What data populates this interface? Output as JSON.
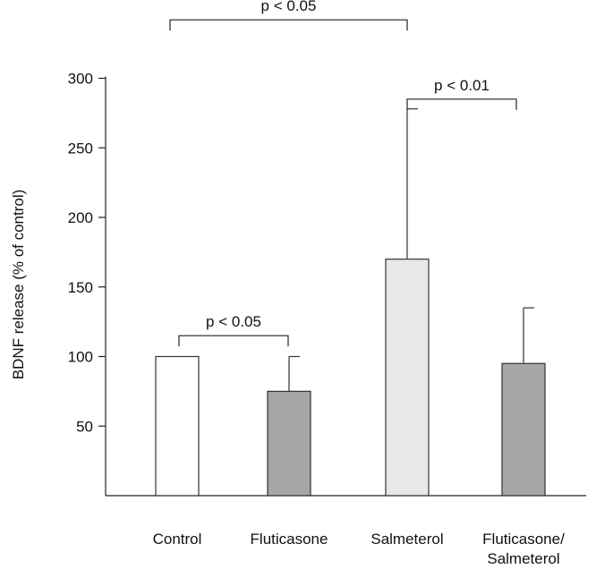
{
  "chart_data": {
    "type": "bar",
    "title": "",
    "xlabel": "",
    "ylabel": "BDNF release (% of control)",
    "ylim": [
      0,
      300
    ],
    "yticks": [
      50,
      100,
      150,
      200,
      250,
      300
    ],
    "categories": [
      [
        "Control"
      ],
      [
        "Fluticasone"
      ],
      [
        "Salmeterol"
      ],
      [
        "Fluticasone/",
        "Salmeterol"
      ]
    ],
    "values": [
      100,
      75,
      170,
      95
    ],
    "errors": [
      0,
      25,
      108,
      40
    ],
    "colors": [
      "#ffffff",
      "#a6a6a6",
      "#e8e8e8",
      "#a6a6a6"
    ],
    "grid": false,
    "annotations": [
      {
        "text": "p < 0.05",
        "from": 0,
        "to": 1,
        "y": 115
      },
      {
        "text": "p < 0.01",
        "from": 2,
        "to": 3,
        "y": 285
      },
      {
        "text": "p < 0.05",
        "from": 0,
        "to": 2,
        "y": 342
      }
    ]
  }
}
